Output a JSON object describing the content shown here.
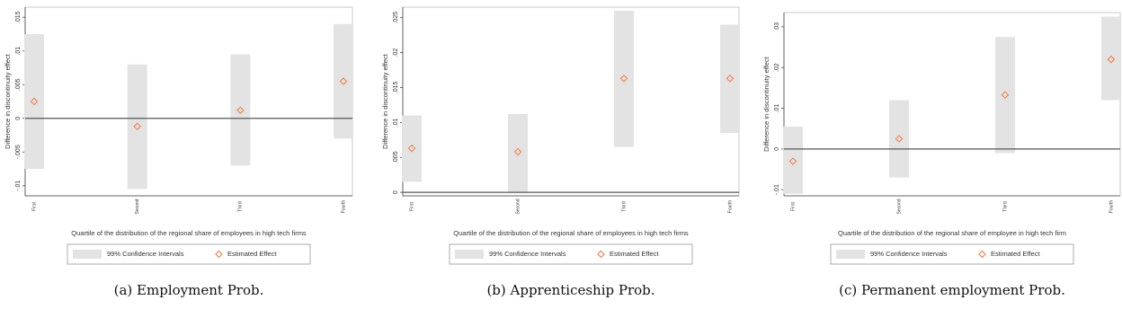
{
  "chart_data": [
    {
      "type": "ci",
      "caption": "(a) Employment Prob.",
      "y_label": "Difference in discontinuity effect",
      "x_label": "Quartile of the distribution of the regional share of employees in high tech firms",
      "categories": [
        "First",
        "Second",
        "Third",
        "Fourth"
      ],
      "series": [
        {
          "name": "99% Confidence Intervals",
          "color": "#e3e3e3",
          "lower": [
            -0.0075,
            -0.0105,
            -0.007,
            -0.003
          ],
          "upper": [
            0.0125,
            0.008,
            0.0095,
            0.014
          ]
        },
        {
          "name": "Estimated Effect",
          "color": "#ee8a5c",
          "values": [
            0.0025,
            -0.0012,
            0.0012,
            0.0055
          ]
        }
      ],
      "ylim": [
        -0.0115,
        0.0165
      ],
      "yticks": [
        {
          "value": -0.01,
          "label": "-.01"
        },
        {
          "value": -0.005,
          "label": "-.005"
        },
        0,
        {
          "value": 0.005,
          "label": ".005"
        },
        {
          "value": 0.01,
          "label": ".01"
        },
        {
          "value": 0.015,
          "label": ".015"
        }
      ]
    },
    {
      "type": "ci",
      "caption": "(b) Apprenticeship Prob.",
      "y_label": "Difference in discontinuity effect",
      "x_label": "Quartile of the distribution of the regional share of employees in high tech firms",
      "categories": [
        "First",
        "Second",
        "Third",
        "Fourth"
      ],
      "series": [
        {
          "name": "99% Confidence Intervals",
          "color": "#e3e3e3",
          "lower": [
            0.0015,
            0,
            0.0065,
            0.0085
          ],
          "upper": [
            0.011,
            0.0112,
            0.026,
            0.024
          ]
        },
        {
          "name": "Estimated Effect",
          "color": "#ee8a5c",
          "values": [
            0.0063,
            0.0058,
            0.0163,
            0.0163
          ]
        }
      ],
      "ylim": [
        -0.0005,
        0.0265
      ],
      "yticks": [
        0,
        {
          "value": 0.005,
          "label": ".005"
        },
        {
          "value": 0.01,
          "label": ".01"
        },
        {
          "value": 0.015,
          "label": ".015"
        },
        {
          "value": 0.02,
          "label": ".02"
        },
        {
          "value": 0.025,
          "label": ".025"
        }
      ]
    },
    {
      "type": "ci",
      "caption": "(c) Permanent employment Prob.",
      "y_label": "Difference in discontinuity effect",
      "x_label": "Quartile of the distribution of the regional share of employee in high tech firm",
      "categories": [
        "First",
        "Second",
        "Third",
        "Fourth"
      ],
      "series": [
        {
          "name": "99% Confidence Intervals",
          "color": "#e3e3e3",
          "lower": [
            -0.011,
            -0.007,
            -0.001,
            0.012
          ],
          "upper": [
            0.0055,
            0.012,
            0.0275,
            0.0325
          ]
        },
        {
          "name": "Estimated Effect",
          "color": "#ee8a5c",
          "values": [
            -0.003,
            0.0025,
            0.0133,
            0.022
          ]
        }
      ],
      "ylim": [
        -0.0115,
        0.0335
      ],
      "yticks": [
        {
          "value": -0.01,
          "label": "-.01"
        },
        0,
        {
          "value": 0.01,
          "label": ".01"
        },
        {
          "value": 0.02,
          "label": ".02"
        },
        {
          "value": 0.03,
          "label": ".03"
        }
      ]
    }
  ]
}
